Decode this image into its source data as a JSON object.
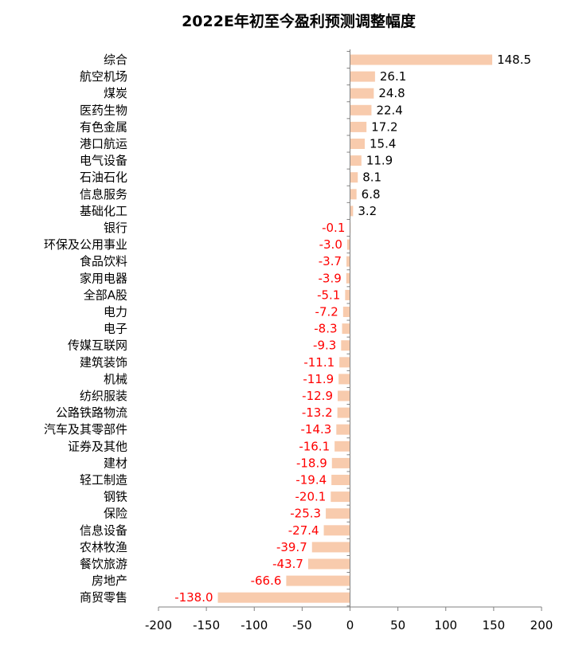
{
  "chart_data": {
    "type": "bar",
    "orientation": "horizontal",
    "title": "2022E年初至今盈利预测调整幅度",
    "categories": [
      "综合",
      "航空机场",
      "煤炭",
      "医药生物",
      "有色金属",
      "港口航运",
      "电气设备",
      "石油石化",
      "信息服务",
      "基础化工",
      "银行",
      "环保及公用事业",
      "食品饮料",
      "家用电器",
      "全部A股",
      "电力",
      "电子",
      "传媒互联网",
      "建筑装饰",
      "机械",
      "纺织服装",
      "公路铁路物流",
      "汽车及其零部件",
      "证券及其他",
      "建材",
      "轻工制造",
      "钢铁",
      "保险",
      "信息设备",
      "农林牧渔",
      "餐饮旅游",
      "房地产",
      "商贸零售"
    ],
    "values": [
      148.5,
      26.1,
      24.8,
      22.4,
      17.2,
      15.4,
      11.9,
      8.1,
      6.8,
      3.2,
      -0.1,
      -3.0,
      -3.7,
      -3.9,
      -5.1,
      -7.2,
      -8.3,
      -9.3,
      -11.1,
      -11.9,
      -12.9,
      -13.2,
      -14.3,
      -16.1,
      -18.9,
      -19.4,
      -20.1,
      -25.3,
      -27.4,
      -39.7,
      -43.7,
      -66.6,
      -138.0
    ],
    "value_labels": [
      "148.5",
      "26.1",
      "24.8",
      "22.4",
      "17.2",
      "15.4",
      "11.9",
      "8.1",
      "6.8",
      "3.2",
      "-0.1",
      "-3.0",
      "-3.7",
      "-3.9",
      "-5.1",
      "-7.2",
      "-8.3",
      "-9.3",
      "-11.1",
      "-11.9",
      "-12.9",
      "-13.2",
      "-14.3",
      "-16.1",
      "-18.9",
      "-19.4",
      "-20.1",
      "-25.3",
      "-27.4",
      "-39.7",
      "-43.7",
      "-66.6",
      "-138.0"
    ],
    "xlim": [
      -200,
      200
    ],
    "xticks": [
      -200,
      -150,
      -100,
      -50,
      0,
      50,
      100,
      150,
      200
    ],
    "xtick_labels": [
      "-200",
      "-150",
      "-100",
      "-50",
      "0",
      "50",
      "100",
      "150",
      "200"
    ],
    "grid": false,
    "colors": {
      "bar": "#F8CBAD",
      "positive_label": "#000000",
      "negative_label": "#FF0000",
      "axis": "#808080"
    }
  }
}
